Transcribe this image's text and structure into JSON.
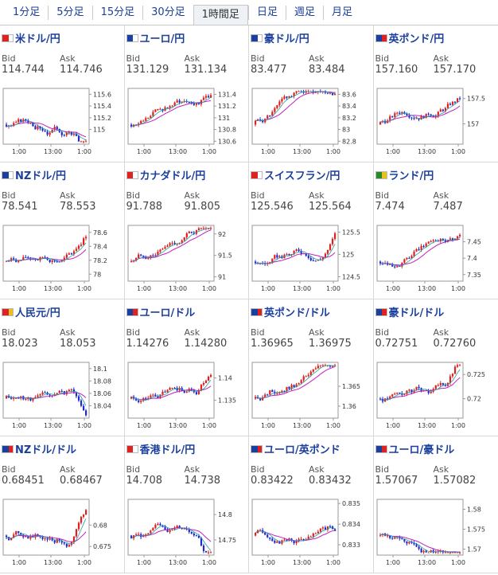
{
  "tabs": [
    {
      "label": "1分足",
      "active": false
    },
    {
      "label": "5分足",
      "active": false
    },
    {
      "label": "15分足",
      "active": false
    },
    {
      "label": "30分足",
      "active": false
    },
    {
      "label": "1時間足",
      "active": true
    },
    {
      "label": "日足",
      "active": false
    },
    {
      "label": "週足",
      "active": false
    },
    {
      "label": "月足",
      "active": false
    }
  ],
  "labels": {
    "bid": "Bid",
    "ask": "Ask"
  },
  "x_ticks": [
    "1:00",
    "13:00",
    "1:00"
  ],
  "colors": {
    "up": "#e0201c",
    "down": "#1c2ad0",
    "ma": "#c020c0",
    "ma2": "#20a0a0",
    "link": "#1a3f9c"
  },
  "pairs": [
    {
      "name": "米ドル/円",
      "flag": [
        "#d22",
        "#fff"
      ],
      "bid": "114.744",
      "ask": "114.746",
      "yticks": [
        "115.6",
        "115.4",
        "115.2",
        "115"
      ],
      "yrange": [
        114.75,
        115.7
      ],
      "trend": "flat-drop"
    },
    {
      "name": "ユーロ/円",
      "flag": [
        "#1a3f9c",
        "#fff"
      ],
      "bid": "131.129",
      "ask": "131.134",
      "yticks": [
        "131.4",
        "131.2",
        "131",
        "130.8",
        "130.6"
      ],
      "yrange": [
        130.55,
        131.5
      ],
      "trend": "rise"
    },
    {
      "name": "豪ドル/円",
      "flag": [
        "#1a3f9c",
        "#fff"
      ],
      "bid": "83.477",
      "ask": "83.484",
      "yticks": [
        "83.6",
        "83.4",
        "83.2",
        "83",
        "82.8"
      ],
      "yrange": [
        82.75,
        83.7
      ],
      "trend": "rise"
    },
    {
      "name": "英ポンド/円",
      "flag": [
        "#1a3f9c",
        "#d22"
      ],
      "bid": "157.160",
      "ask": "157.170",
      "yticks": [
        "157.5",
        "157"
      ],
      "yrange": [
        156.6,
        157.7
      ],
      "trend": "rise"
    },
    {
      "name": "NZドル/円",
      "flag": [
        "#1a3f9c",
        "#fff"
      ],
      "bid": "78.541",
      "ask": "78.553",
      "yticks": [
        "78.6",
        "78.4",
        "78.2",
        "78"
      ],
      "yrange": [
        77.9,
        78.7
      ],
      "trend": "rise-late"
    },
    {
      "name": "カナダドル/円",
      "flag": [
        "#d22",
        "#fff"
      ],
      "bid": "91.788",
      "ask": "91.805",
      "yticks": [
        "92",
        "91.5",
        "91"
      ],
      "yrange": [
        90.9,
        92.2
      ],
      "trend": "rise"
    },
    {
      "name": "スイスフラン/円",
      "flag": [
        "#d22",
        "#fff"
      ],
      "bid": "125.546",
      "ask": "125.564",
      "yticks": [
        "125.5",
        "125",
        "124.5"
      ],
      "yrange": [
        124.4,
        125.65
      ],
      "trend": "rise-late"
    },
    {
      "name": "ランド/円",
      "flag": [
        "#2a8a2a",
        "#e8c020"
      ],
      "bid": "7.474",
      "ask": "7.487",
      "yticks": [
        "7.45",
        "7.4",
        "7.35"
      ],
      "yrange": [
        7.33,
        7.5
      ],
      "trend": "rise"
    },
    {
      "name": "人民元/円",
      "flag": [
        "#d22",
        "#e8c020"
      ],
      "bid": "18.023",
      "ask": "18.053",
      "yticks": [
        "18.1",
        "18.08",
        "18.06",
        "18.04"
      ],
      "yrange": [
        18.02,
        18.11
      ],
      "trend": "flat-drop"
    },
    {
      "name": "ユーロ/ドル",
      "flag": [
        "#1a3f9c",
        "#d22"
      ],
      "bid": "1.14276",
      "ask": "1.14280",
      "yticks": [
        "1.14",
        "1.135"
      ],
      "yrange": [
        1.131,
        1.1435
      ],
      "trend": "rise-late"
    },
    {
      "name": "英ポンド/ドル",
      "flag": [
        "#1a3f9c",
        "#d22"
      ],
      "bid": "1.36965",
      "ask": "1.36975",
      "yticks": [
        "1.365",
        "1.36"
      ],
      "yrange": [
        1.357,
        1.371
      ],
      "trend": "rise"
    },
    {
      "name": "豪ドル/ドル",
      "flag": [
        "#1a3f9c",
        "#d22"
      ],
      "bid": "0.72751",
      "ask": "0.72760",
      "yticks": [
        "0.725",
        "0.72"
      ],
      "yrange": [
        0.716,
        0.7275
      ],
      "trend": "rise-late"
    },
    {
      "name": "NZドル/ドル",
      "flag": [
        "#1a3f9c",
        "#d22"
      ],
      "bid": "0.68451",
      "ask": "0.68467",
      "yticks": [
        "0.68",
        "0.675"
      ],
      "yrange": [
        0.673,
        0.686
      ],
      "trend": "rise-late"
    },
    {
      "name": "香港ドル/円",
      "flag": [
        "#d22",
        "#fff"
      ],
      "bid": "14.708",
      "ask": "14.738",
      "yticks": [
        "14.8",
        "14.75"
      ],
      "yrange": [
        14.72,
        14.83
      ],
      "trend": "flat-drop"
    },
    {
      "name": "ユーロ/英ポンド",
      "flag": [
        "#1a3f9c",
        "#d22"
      ],
      "bid": "0.83422",
      "ask": "0.83432",
      "yticks": [
        "0.835",
        "0.834",
        "0.833"
      ],
      "yrange": [
        0.8325,
        0.8352
      ],
      "trend": "flat"
    },
    {
      "name": "ユーロ/豪ドル",
      "flag": [
        "#1a3f9c",
        "#d22"
      ],
      "bid": "1.57067",
      "ask": "1.57082",
      "yticks": [
        "1.58",
        "1.575",
        "1.57"
      ],
      "yrange": [
        1.5685,
        1.5825
      ],
      "trend": "fall"
    }
  ]
}
